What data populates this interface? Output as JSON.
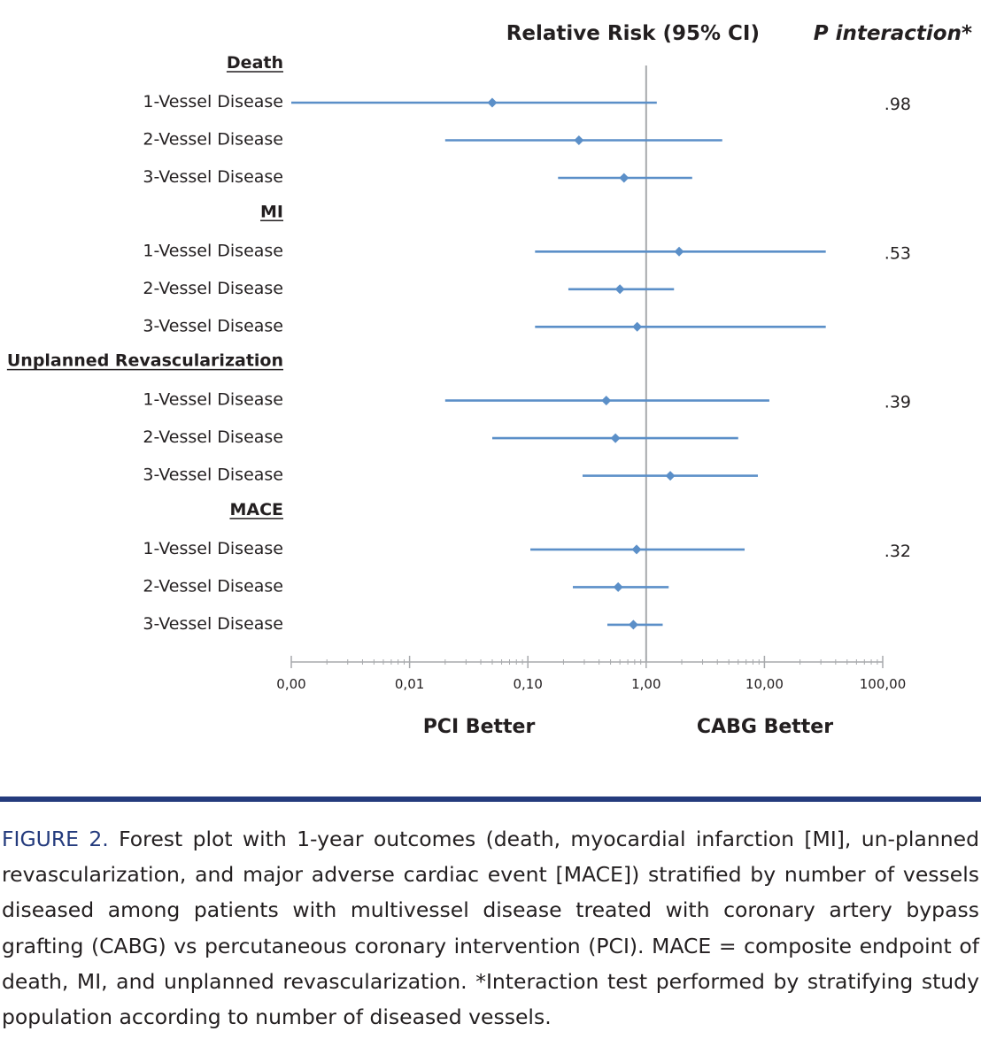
{
  "chart_data": {
    "type": "forest",
    "headers": {
      "estimate": "Relative Risk (95% CI)",
      "p_value": "P interaction*"
    },
    "scale": "log",
    "xlim": [
      0.001,
      100
    ],
    "x_ticks": [
      {
        "value": 0.001,
        "label": "0,00"
      },
      {
        "value": 0.01,
        "label": "0,01"
      },
      {
        "value": 0.1,
        "label": "0,10"
      },
      {
        "value": 1,
        "label": "1,00"
      },
      {
        "value": 10,
        "label": "10,00"
      },
      {
        "value": 100,
        "label": "100,00"
      }
    ],
    "reference_value": 1,
    "favors_left": "PCI Better",
    "favors_right": "CABG Better",
    "marker_color": "#5b8fc8",
    "reference_line_color": "#a7a9ac",
    "groups": [
      {
        "name": "Death",
        "p_interaction": ".98",
        "rows": [
          {
            "label": "1-Vessel Disease",
            "estimate": 0.05,
            "lower": 0.001,
            "upper": 1.23
          },
          {
            "label": "2-Vessel Disease",
            "estimate": 0.27,
            "lower": 0.02,
            "upper": 4.4
          },
          {
            "label": "3-Vessel Disease",
            "estimate": 0.65,
            "lower": 0.18,
            "upper": 2.45
          }
        ]
      },
      {
        "name": "MI",
        "p_interaction": ".53",
        "rows": [
          {
            "label": "1-Vessel Disease",
            "estimate": 1.9,
            "lower": 0.115,
            "upper": 33
          },
          {
            "label": "2-Vessel Disease",
            "estimate": 0.6,
            "lower": 0.22,
            "upper": 1.72
          },
          {
            "label": "3-Vessel Disease",
            "estimate": 0.84,
            "lower": 0.115,
            "upper": 33
          }
        ]
      },
      {
        "name": "Unplanned Revascularization",
        "p_interaction": ".39",
        "rows": [
          {
            "label": "1-Vessel Disease",
            "estimate": 0.46,
            "lower": 0.02,
            "upper": 11
          },
          {
            "label": "2-Vessel Disease",
            "estimate": 0.55,
            "lower": 0.05,
            "upper": 6
          },
          {
            "label": "3-Vessel Disease",
            "estimate": 1.6,
            "lower": 0.29,
            "upper": 8.8
          }
        ]
      },
      {
        "name": "MACE",
        "p_interaction": ".32",
        "rows": [
          {
            "label": "1-Vessel Disease",
            "estimate": 0.83,
            "lower": 0.105,
            "upper": 6.8
          },
          {
            "label": "2-Vessel Disease",
            "estimate": 0.58,
            "lower": 0.24,
            "upper": 1.55
          },
          {
            "label": "3-Vessel Disease",
            "estimate": 0.78,
            "lower": 0.47,
            "upper": 1.38
          }
        ]
      }
    ]
  },
  "caption": {
    "label": "FIGURE 2.",
    "text": " Forest plot with 1-year outcomes (death, myocardial infarction [MI], un-planned revascularization, and major adverse cardiac event [MACE]) stratified by number of vessels diseased among patients with multivessel disease treated with coronary artery bypass grafting (CABG) vs percutaneous coronary intervention (PCI). MACE = composite endpoint of death, MI, and unplanned revascularization. *Interaction test performed by stratifying study population according to number of diseased vessels."
  }
}
